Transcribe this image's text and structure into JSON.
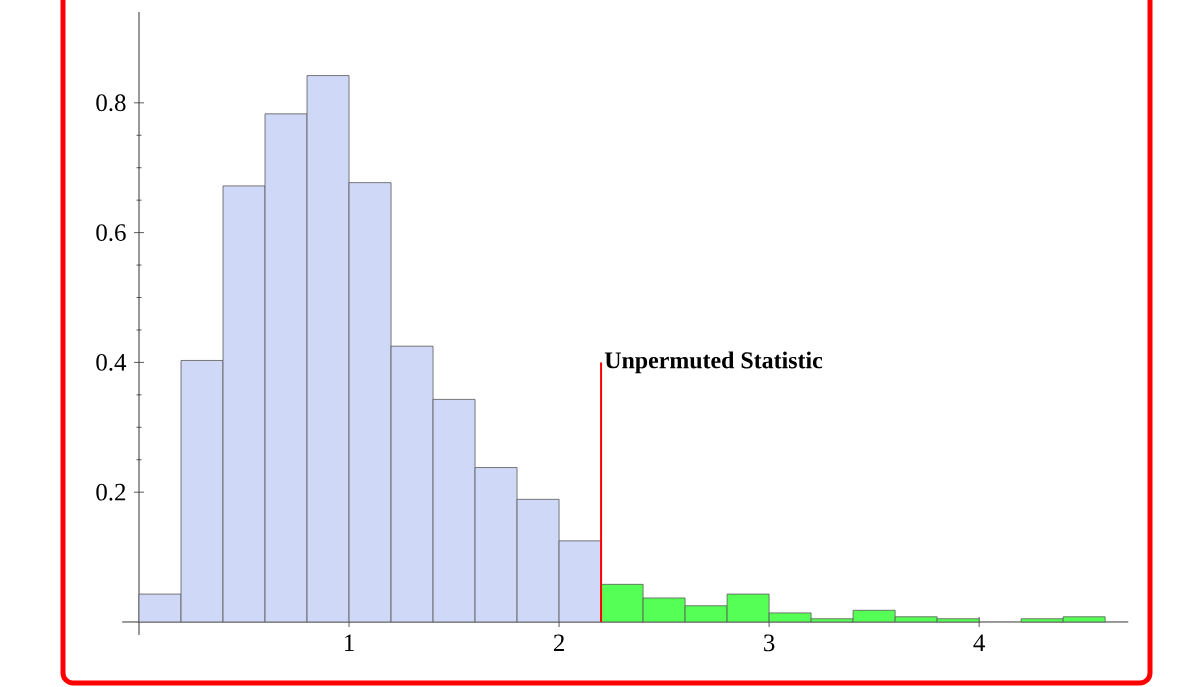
{
  "chart_data": {
    "type": "histogram",
    "bins": [
      0,
      0.2,
      0.4,
      0.6,
      0.8,
      1.0,
      1.2,
      1.4,
      1.6,
      1.8,
      2.0,
      2.2,
      2.4,
      2.6,
      2.8,
      3.0,
      3.2,
      3.4,
      3.6,
      3.8,
      4.0,
      4.2,
      4.4,
      4.6
    ],
    "values": [
      0.043,
      0.403,
      0.672,
      0.783,
      0.842,
      0.677,
      0.425,
      0.343,
      0.238,
      0.189,
      0.125,
      0.058,
      0.037,
      0.025,
      0.043,
      0.014,
      0.005,
      0.018,
      0.008,
      0.005,
      0,
      0.005,
      0.008
    ],
    "colors": [
      "#d0d8f8",
      "#d0d8f8",
      "#d0d8f8",
      "#d0d8f8",
      "#d0d8f8",
      "#d0d8f8",
      "#d0d8f8",
      "#d0d8f8",
      "#d0d8f8",
      "#d0d8f8",
      "#d0d8f8",
      "#55ff55",
      "#55ff55",
      "#55ff55",
      "#55ff55",
      "#55ff55",
      "#55ff55",
      "#55ff55",
      "#55ff55",
      "#55ff55",
      "#55ff55",
      "#55ff55",
      "#55ff55"
    ],
    "xlim": [
      -0.08,
      4.71
    ],
    "ylim": [
      -0.02,
      0.94
    ],
    "xticks": [
      1,
      2,
      3,
      4
    ],
    "yticks": [
      0.2,
      0.4,
      0.6,
      0.8
    ],
    "ref_lines": [
      {
        "axis": "x",
        "value": 2.2,
        "label": "Unpermuted Statistic",
        "color": "#ff0000"
      }
    ]
  }
}
